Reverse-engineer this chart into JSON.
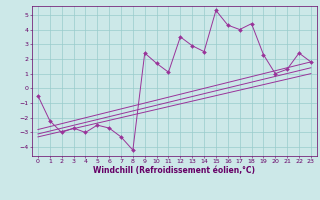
{
  "title": "",
  "xlabel": "Windchill (Refroidissement éolien,°C)",
  "ylabel": "",
  "bg_color": "#cce8e8",
  "grid_color": "#99cccc",
  "line_color": "#993399",
  "marker_color": "#993399",
  "xlim": [
    -0.5,
    23.5
  ],
  "ylim": [
    -4.6,
    5.6
  ],
  "yticks": [
    -4,
    -3,
    -2,
    -1,
    0,
    1,
    2,
    3,
    4,
    5
  ],
  "xticks": [
    0,
    1,
    2,
    3,
    4,
    5,
    6,
    7,
    8,
    9,
    10,
    11,
    12,
    13,
    14,
    15,
    16,
    17,
    18,
    19,
    20,
    21,
    22,
    23
  ],
  "scatter_x": [
    0,
    1,
    2,
    3,
    4,
    5,
    6,
    7,
    8,
    9,
    10,
    11,
    12,
    13,
    14,
    15,
    16,
    17,
    18,
    19,
    20,
    21,
    22,
    23
  ],
  "scatter_y": [
    -0.5,
    -2.2,
    -3.0,
    -2.7,
    -3.0,
    -2.5,
    -2.7,
    -3.3,
    -4.2,
    2.4,
    1.7,
    1.1,
    3.5,
    2.9,
    2.5,
    5.3,
    4.3,
    4.0,
    4.4,
    2.3,
    1.0,
    1.3,
    2.4,
    1.8
  ],
  "line1_x": [
    0,
    23
  ],
  "line1_y": [
    -3.1,
    1.4
  ],
  "line2_x": [
    0,
    23
  ],
  "line2_y": [
    -2.8,
    1.8
  ],
  "line3_x": [
    0,
    23
  ],
  "line3_y": [
    -3.3,
    1.0
  ],
  "font_color": "#660066",
  "tick_fontsize": 4.5,
  "label_fontsize": 5.5
}
